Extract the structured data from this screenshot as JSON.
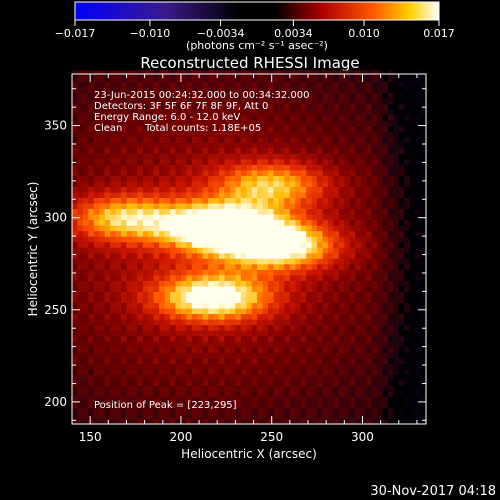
{
  "chart_data": {
    "type": "heatmap",
    "title": "Reconstructed RHESSI Image",
    "xlabel": "Heliocentric X (arcsec)",
    "ylabel": "Heliocentric Y (arcsec)",
    "xlim": [
      140,
      335
    ],
    "ylim": [
      188,
      378
    ],
    "x_ticks": [
      150,
      200,
      250,
      300
    ],
    "y_ticks": [
      200,
      250,
      300,
      350
    ],
    "colorbar": {
      "range": [
        -0.017,
        0.017
      ],
      "tick_values": [
        -0.017,
        -0.01,
        -0.0034,
        0.0034,
        0.01,
        0.017
      ],
      "tick_labels": [
        "−0.017",
        "−0.010",
        "−0.0034",
        "0.0034",
        "0.010",
        "0.017"
      ],
      "unit_label": "(photons cm⁻² s⁻¹ asec⁻²)"
    },
    "annotations": {
      "time_range": "23-Jun-2015 00:24:32.000 to 00:34:32.000",
      "detectors": "Detectors: 3F 5F 6F 7F 8F 9F, Att 0",
      "energy": "Energy Range: 6.0 - 12.0 keV",
      "method": "Clean",
      "counts": "Total counts: 1.18E+05",
      "peak": "Position of Peak = [223,295]"
    },
    "sources": [
      {
        "x": 223,
        "y": 295,
        "peak": 0.017
      },
      {
        "x": 255,
        "y": 285,
        "peak": 0.013
      },
      {
        "x": 218,
        "y": 257,
        "peak": 0.0135
      },
      {
        "x": 168,
        "y": 300,
        "peak": 0.01
      },
      {
        "x": 250,
        "y": 318,
        "peak": 0.0095
      }
    ],
    "peak_position": [
      223,
      295
    ]
  },
  "footer": {
    "date": "30-Nov-2017 04:18"
  }
}
